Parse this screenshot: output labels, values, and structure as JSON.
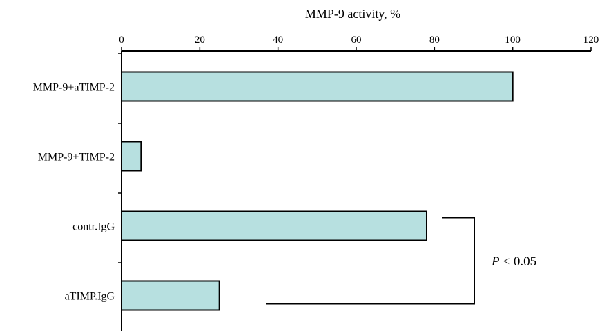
{
  "chart_data": {
    "type": "bar",
    "orientation": "horizontal",
    "xlabel": "MMP-9 activity, %",
    "xlim": [
      0,
      120
    ],
    "xticks": [
      0,
      20,
      40,
      60,
      80,
      100,
      120
    ],
    "x_axis_position": "top",
    "grid": false,
    "legend": "none",
    "categories": [
      "MMP-9+aTIMP-2",
      "MMP-9+TIMP-2",
      "contr.IgG",
      "aTIMP.IgG"
    ],
    "values": [
      100,
      5,
      78,
      25
    ],
    "bar_color": "#b7e0e0",
    "annotation": {
      "text_italic": "P",
      "text_rest": " < 0.05",
      "between": [
        "contr.IgG",
        "aTIMP.IgG"
      ]
    }
  }
}
